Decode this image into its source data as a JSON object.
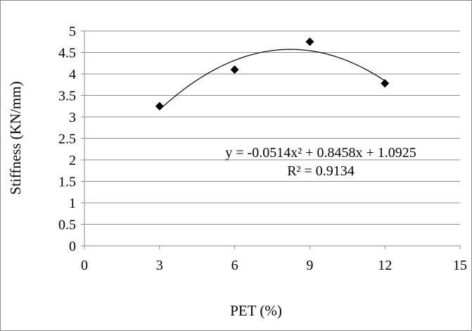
{
  "chart_data": {
    "type": "scatter",
    "title": "",
    "xlabel": "PET (%)",
    "ylabel": "Stiffness (KN/mm)",
    "xlim": [
      0,
      15
    ],
    "ylim": [
      0,
      5
    ],
    "x_ticks": [
      "0",
      "3",
      "6",
      "9",
      "12",
      "15"
    ],
    "y_ticks": [
      "0",
      "0.5",
      "1",
      "1.5",
      "2",
      "2.5",
      "3",
      "3.5",
      "4",
      "4.5",
      "5"
    ],
    "grid": "horizontal",
    "series": [
      {
        "marker": "diamond",
        "color": "#000000",
        "x": [
          3,
          6,
          9,
          12
        ],
        "y": [
          3.25,
          4.1,
          4.75,
          3.78
        ]
      }
    ],
    "trendline": {
      "type": "polynomial",
      "order": 2,
      "coefficients": [
        -0.0514,
        0.8458,
        1.0925
      ],
      "x_range": [
        3,
        12
      ],
      "equation": "y = -0.0514x² + 0.8458x + 1.0925",
      "r_squared": "R² = 0.9134"
    }
  }
}
